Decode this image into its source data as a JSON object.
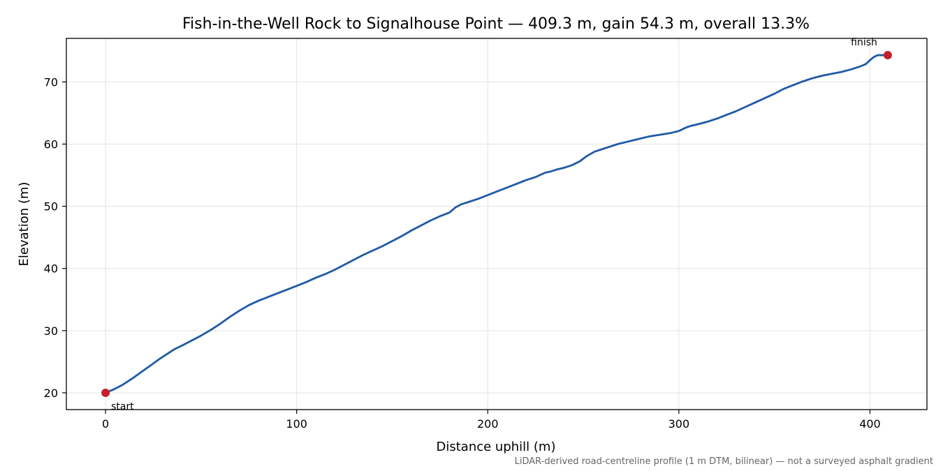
{
  "chart_data": {
    "type": "line",
    "title": "Fish-in-the-Well Rock to Signalhouse Point — 409.3 m, gain 54.3 m, overall 13.3%",
    "xlabel": "Distance uphill (m)",
    "ylabel": "Elevation (m)",
    "xlim": [
      -20.5,
      429.8
    ],
    "ylim": [
      17.3,
      77.0
    ],
    "xticks": [
      0,
      100,
      200,
      300,
      400
    ],
    "yticks": [
      20,
      30,
      40,
      50,
      60,
      70
    ],
    "grid": true,
    "footnote": "LiDAR-derived road-centreline profile (1 m DTM, bilinear) — not a surveyed asphalt gradient",
    "series": [
      {
        "x": [
          0,
          4,
          9,
          14,
          19,
          24,
          28,
          32,
          36,
          40,
          45,
          50,
          55,
          60,
          65,
          70,
          75,
          80,
          85,
          90,
          95,
          100,
          105,
          110,
          115,
          120,
          125,
          130,
          135,
          140,
          145,
          150,
          155,
          160,
          165,
          170,
          175,
          180,
          183,
          186,
          190,
          195,
          200,
          205,
          210,
          215,
          220,
          225,
          230,
          233,
          236,
          240,
          244,
          248,
          252,
          256,
          260,
          264,
          268,
          272,
          276,
          280,
          284,
          288,
          292,
          296,
          300,
          304,
          306,
          310,
          315,
          320,
          325,
          330,
          335,
          340,
          345,
          350,
          355,
          360,
          365,
          370,
          375,
          380,
          385,
          390,
          395,
          398,
          400,
          402,
          404,
          406,
          409.3
        ],
        "values": [
          20.0,
          20.5,
          21.3,
          22.3,
          23.4,
          24.5,
          25.4,
          26.2,
          27.0,
          27.6,
          28.4,
          29.2,
          30.1,
          31.1,
          32.2,
          33.2,
          34.1,
          34.8,
          35.4,
          36.0,
          36.6,
          37.2,
          37.8,
          38.5,
          39.1,
          39.8,
          40.6,
          41.4,
          42.2,
          42.9,
          43.6,
          44.4,
          45.2,
          46.1,
          46.9,
          47.7,
          48.4,
          49.0,
          49.8,
          50.3,
          50.7,
          51.2,
          51.8,
          52.4,
          53.0,
          53.6,
          54.2,
          54.7,
          55.4,
          55.6,
          55.9,
          56.2,
          56.6,
          57.2,
          58.1,
          58.8,
          59.2,
          59.6,
          60.0,
          60.3,
          60.6,
          60.9,
          61.2,
          61.4,
          61.6,
          61.8,
          62.1,
          62.7,
          62.9,
          63.2,
          63.6,
          64.1,
          64.7,
          65.3,
          66.0,
          66.7,
          67.4,
          68.1,
          68.9,
          69.5,
          70.1,
          70.6,
          71.0,
          71.3,
          71.6,
          72.0,
          72.5,
          72.9,
          73.5,
          74.0,
          74.3,
          74.3,
          74.3
        ]
      }
    ],
    "annotations": [
      {
        "label": "start",
        "x": 0,
        "y": 20.0
      },
      {
        "label": "finish",
        "x": 409.3,
        "y": 74.3
      }
    ],
    "colors": {
      "line": "#1f5aa6",
      "marker": "#c1202c",
      "grid": "#e3e3e3",
      "footnote": "#666666"
    }
  }
}
